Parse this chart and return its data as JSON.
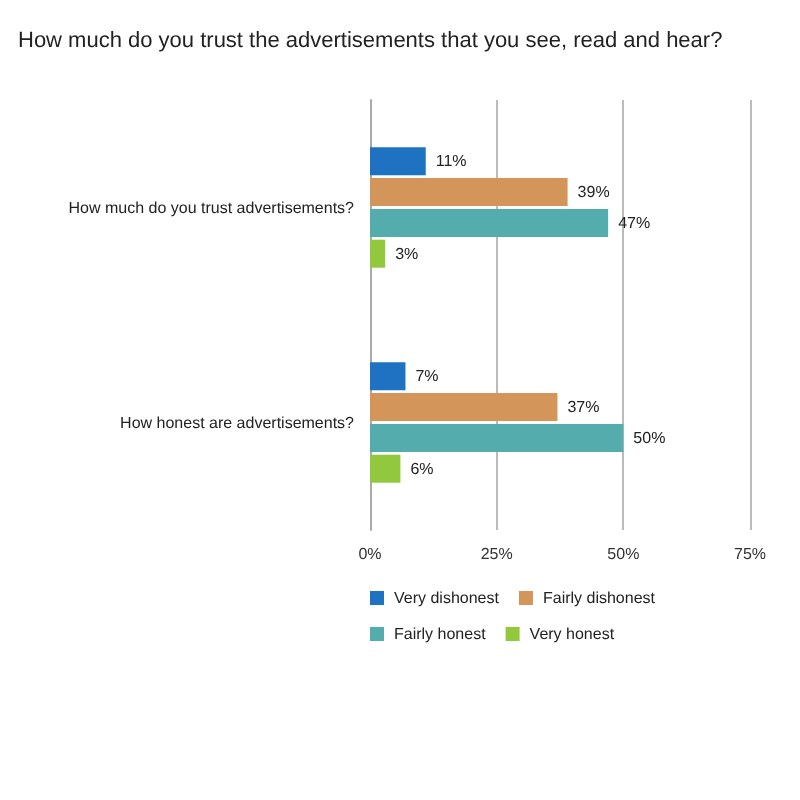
{
  "chart_data": {
    "type": "bar",
    "orientation": "horizontal",
    "title": "How much do you trust the advertisements that you see, read and hear?",
    "categories": [
      "How much do you trust advertisements?",
      "How honest are advertisements?"
    ],
    "series": [
      {
        "name": "Very dishonest",
        "color": "#1f72c2",
        "values": [
          11,
          7
        ],
        "value_labels": [
          "11%",
          "7%"
        ]
      },
      {
        "name": "Fairly dishonest",
        "color": "#d4955b",
        "values": [
          39,
          37
        ],
        "value_labels": [
          "39%",
          "37%"
        ]
      },
      {
        "name": "Fairly honest",
        "color": "#55acad",
        "values": [
          47,
          50
        ],
        "value_labels": [
          "47%",
          "50%"
        ]
      },
      {
        "name": "Very honest",
        "color": "#92c83e",
        "values": [
          3,
          6
        ],
        "value_labels": [
          "3%",
          "6%"
        ]
      }
    ],
    "xlim": [
      0,
      75
    ],
    "xticks": [
      {
        "value": 0,
        "label": "0%"
      },
      {
        "value": 25,
        "label": "25%"
      },
      {
        "value": 50,
        "label": "50%"
      },
      {
        "value": 75,
        "label": "75%"
      }
    ],
    "grid": "x",
    "legend": "bottom"
  }
}
